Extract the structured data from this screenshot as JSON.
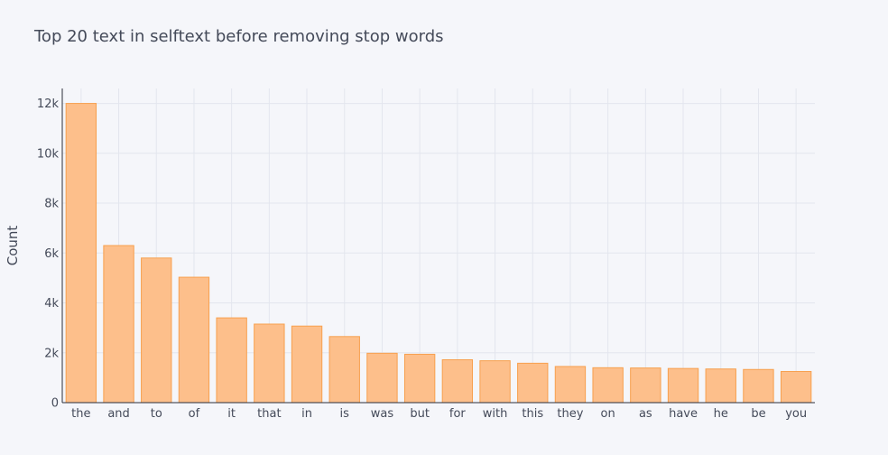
{
  "chart_data": {
    "type": "bar",
    "title": "Top 20 text in selftext before removing stop words",
    "xlabel": "",
    "ylabel": "Count",
    "ylim": [
      0,
      12600
    ],
    "yticks": [
      0,
      2000,
      4000,
      6000,
      8000,
      10000,
      12000
    ],
    "ytick_labels": [
      "0",
      "2k",
      "4k",
      "6k",
      "8k",
      "10k",
      "12k"
    ],
    "grid": true,
    "bar_fill": "#fdbf8b",
    "bar_stroke": "#f7a04e",
    "categories": [
      "the",
      "and",
      "to",
      "of",
      "it",
      "that",
      "in",
      "is",
      "was",
      "but",
      "for",
      "with",
      "this",
      "they",
      "on",
      "as",
      "have",
      "he",
      "be",
      "you"
    ],
    "values": [
      12000,
      6300,
      5800,
      5030,
      3400,
      3150,
      3070,
      2650,
      1980,
      1940,
      1720,
      1680,
      1580,
      1450,
      1400,
      1390,
      1370,
      1350,
      1330,
      1250
    ]
  }
}
